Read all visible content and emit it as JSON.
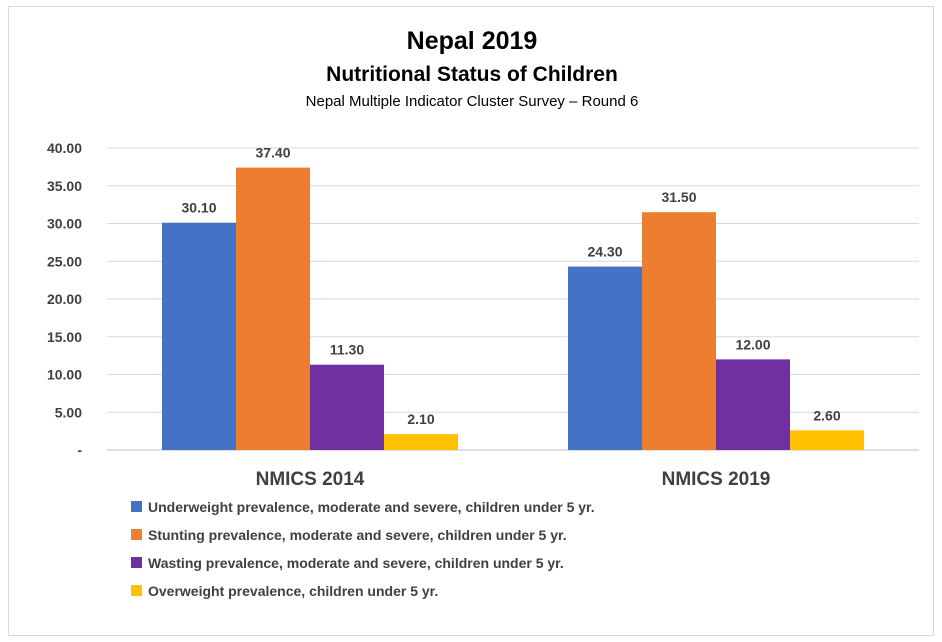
{
  "chart_data": {
    "type": "bar",
    "title": "Nepal 2019",
    "subtitle": "Nutritional Status of Children",
    "source": "Nepal Multiple Indicator Cluster Survey – Round 6",
    "categories": [
      "NMICS 2014",
      "NMICS 2019"
    ],
    "series": [
      {
        "name": "Underweight prevalence, moderate and severe, children under 5 yr.",
        "color": "#4472C4",
        "values": [
          30.1,
          24.3
        ]
      },
      {
        "name": "Stunting prevalence, moderate and severe, children under 5 yr.",
        "color": "#ED7D31",
        "values": [
          37.4,
          31.5
        ]
      },
      {
        "name": "Wasting prevalence, moderate and severe, children under 5 yr.",
        "color": "#7030A0",
        "values": [
          11.3,
          12.0
        ]
      },
      {
        "name": "Overweight prevalence, children under 5 yr.",
        "color": "#FFC000",
        "values": [
          2.1,
          2.6
        ]
      }
    ],
    "yticks": [
      "-",
      "5.00",
      "10.00",
      "15.00",
      "20.00",
      "25.00",
      "30.00",
      "35.00",
      "40.00"
    ],
    "ylim": [
      0,
      40
    ],
    "grid": true,
    "legend_position": "bottom"
  }
}
